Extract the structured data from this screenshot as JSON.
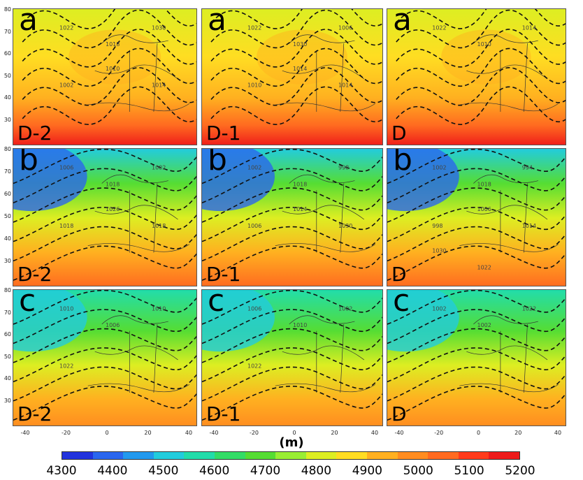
{
  "unit_label": "(m)",
  "colorbar": {
    "ticks": [
      "4300",
      "4400",
      "4500",
      "4600",
      "4700",
      "4800",
      "4900",
      "5000",
      "5100",
      "5200"
    ],
    "colors": [
      "#2233dd",
      "#2a66ee",
      "#2299ee",
      "#22ccdd",
      "#22ddaa",
      "#33dd66",
      "#55dd33",
      "#99ee33",
      "#ddee22",
      "#ffdd22",
      "#ffb020",
      "#ff8c20",
      "#ff6a20",
      "#ff3a1a",
      "#ee1a1a"
    ]
  },
  "axes": {
    "y_ticks": [
      "80",
      "70",
      "60",
      "50",
      "40",
      "30"
    ],
    "x_ticks": [
      "-40",
      "-20",
      "0",
      "20",
      "40"
    ]
  },
  "rows": [
    {
      "letter": "a",
      "panels": [
        {
          "day": "D-2",
          "contours": [
            "1022",
            "1018",
            "1030",
            "1002",
            "1010",
            "1014"
          ]
        },
        {
          "day": "D-1",
          "contours": [
            "1022",
            "1030",
            "1006",
            "1010",
            "1014",
            "1014"
          ]
        },
        {
          "day": "D",
          "contours": [
            "1022",
            "1010",
            "1014"
          ]
        }
      ]
    },
    {
      "letter": "b",
      "panels": [
        {
          "day": "D-2",
          "contours": [
            "1006",
            "1018",
            "1002",
            "1018",
            "1026",
            "1018"
          ]
        },
        {
          "day": "D-1",
          "contours": [
            "1002",
            "1018",
            "998",
            "1006",
            "1014",
            "1030"
          ]
        },
        {
          "day": "D",
          "contours": [
            "1002",
            "1018",
            "994",
            "998",
            "1006",
            "1014",
            "1030",
            "1022"
          ]
        }
      ]
    },
    {
      "letter": "c",
      "panels": [
        {
          "day": "D-2",
          "contours": [
            "1010",
            "1006",
            "1010",
            "1022"
          ]
        },
        {
          "day": "D-1",
          "contours": [
            "1006",
            "1010",
            "1002",
            "1022"
          ]
        },
        {
          "day": "D",
          "contours": [
            "1002",
            "1002",
            "1022"
          ]
        }
      ]
    }
  ]
}
